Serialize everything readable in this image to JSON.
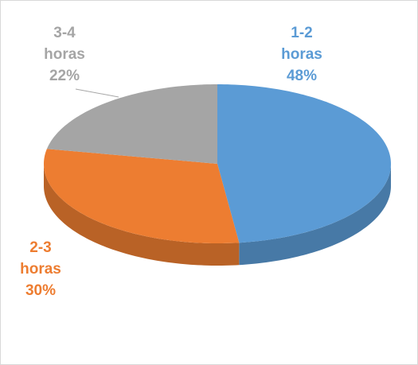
{
  "chart_data": {
    "type": "pie",
    "categories": [
      "1-2 horas",
      "2-3 horas",
      "3-4 horas"
    ],
    "values": [
      48,
      30,
      22
    ],
    "value_labels": [
      "48%",
      "30%",
      "22%"
    ],
    "colors": [
      "#5b9bd5",
      "#ed7d31",
      "#a5a5a5"
    ]
  }
}
